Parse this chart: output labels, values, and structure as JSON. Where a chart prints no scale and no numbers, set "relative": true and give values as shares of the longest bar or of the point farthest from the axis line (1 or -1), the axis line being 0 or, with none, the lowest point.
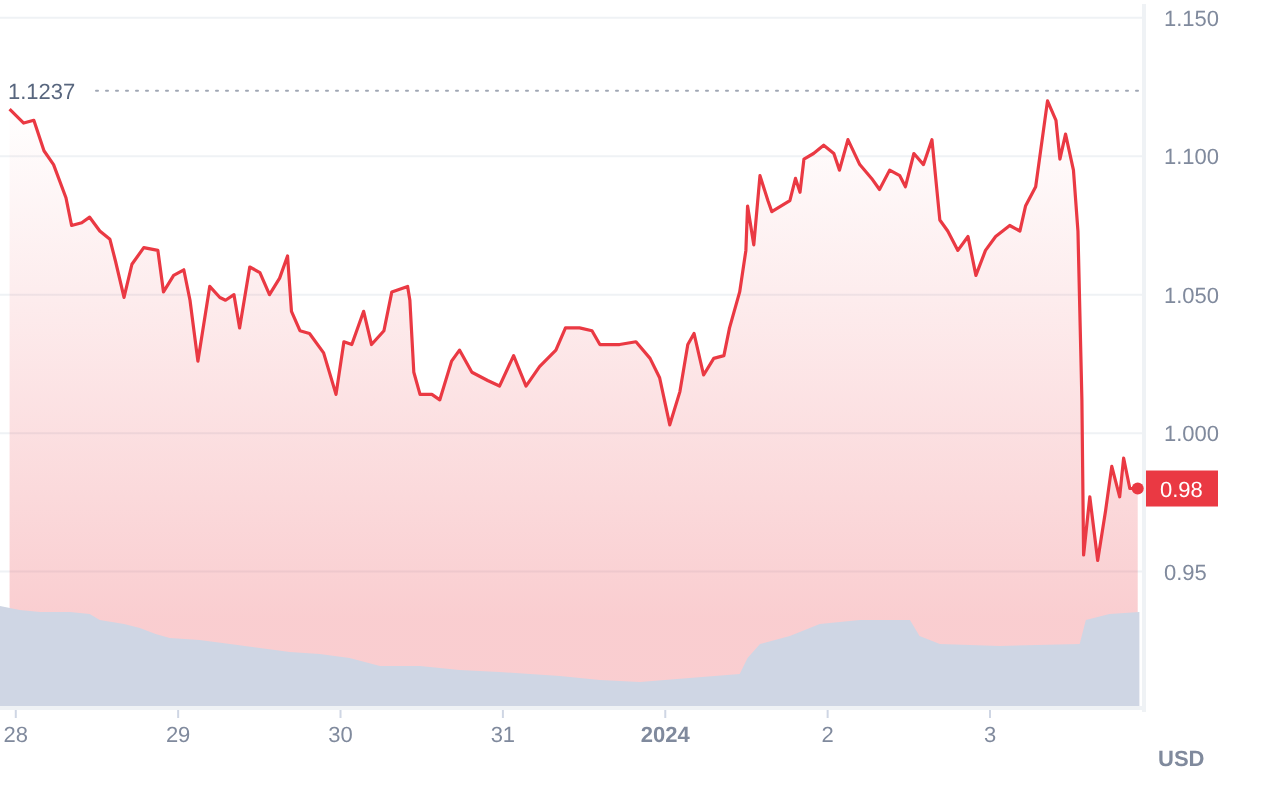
{
  "chart_data": [
    {
      "type": "area",
      "ylabel": "USD",
      "xlim": [
        "2023-12-27T21:40",
        "2024-01-03T22:28"
      ],
      "ylim": [
        0.9,
        1.155
      ],
      "yticks": [
        0.95,
        {
          "value": 1.0,
          "label": "1.000"
        },
        {
          "value": 1.05,
          "label": "1.050"
        },
        {
          "value": 1.1,
          "label": "1.100"
        },
        {
          "value": 1.15,
          "label": "1.150"
        }
      ],
      "tick_labels": "y",
      "grid": "y",
      "ref_lines": [
        {
          "axis": "y",
          "value": 1.1237,
          "label": "1.1237",
          "color": "#a0a7b4",
          "line_style": "dotted"
        }
      ],
      "annotations": [
        {
          "text": "0.98",
          "x": "2024-01-03T21:50",
          "y": 0.98
        }
      ],
      "series": [
        {
          "color": "#ea3943",
          "x": [
            "2023-12-27T23:05",
            "2023-12-28T01:10",
            "2023-12-28T02:40",
            "2023-12-28T04:10",
            "2023-12-28T05:35",
            "2023-12-28T07:25",
            "2023-12-28T08:15",
            "2023-12-28T09:45",
            "2023-12-28T10:55",
            "2023-12-28T12:25",
            "2023-12-28T13:55",
            "2023-12-28T14:45",
            "2023-12-28T16:00",
            "2023-12-28T17:10",
            "2023-12-28T18:55",
            "2023-12-28T21:00",
            "2023-12-28T21:50",
            "2023-12-28T23:20",
            "2023-12-29T00:50",
            "2023-12-29T01:45",
            "2023-12-29T02:55",
            "2023-12-29T04:40",
            "2023-12-29T06:10",
            "2023-12-29T07:00",
            "2023-12-29T08:15",
            "2023-12-29T09:05",
            "2023-12-29T10:35",
            "2023-12-29T12:05",
            "2023-12-29T13:30",
            "2023-12-29T15:00",
            "2023-12-29T16:10",
            "2023-12-29T16:45",
            "2023-12-29T18:00",
            "2023-12-29T19:25",
            "2023-12-29T21:30",
            "2023-12-29T23:20",
            "2023-12-30T00:30",
            "2023-12-30T01:40",
            "2023-12-30T03:25",
            "2023-12-30T04:35",
            "2023-12-30T06:25",
            "2023-12-30T07:35",
            "2023-12-30T09:55",
            "2023-12-30T10:15",
            "2023-12-30T10:50",
            "2023-12-30T11:45",
            "2023-12-30T13:30",
            "2023-12-30T14:40",
            "2023-12-30T16:25",
            "2023-12-30T17:35",
            "2023-12-30T19:25",
            "2023-12-30T21:45",
            "2023-12-30T23:30",
            "2023-12-31T01:35",
            "2023-12-31T03:25",
            "2023-12-31T05:25",
            "2023-12-31T07:50",
            "2023-12-31T09:15",
            "2023-12-31T11:20",
            "2023-12-31T13:10",
            "2023-12-31T14:20",
            "2023-12-31T17:15",
            "2023-12-31T19:40",
            "2023-12-31T21:45",
            "2023-12-31T23:10",
            "2024-01-01T00:40",
            "2024-01-01T02:10",
            "2024-01-01T03:20",
            "2024-01-01T04:15",
            "2024-01-01T05:40",
            "2024-01-01T07:10",
            "2024-01-01T08:40",
            "2024-01-01T09:30",
            "2024-01-01T11:00",
            "2024-01-01T11:55",
            "2024-01-01T12:10",
            "2024-01-01T13:05",
            "2024-01-01T14:00",
            "2024-01-01T15:10",
            "2024-01-01T15:45",
            "2024-01-01T18:25",
            "2024-01-01T19:15",
            "2024-01-01T19:55",
            "2024-01-01T20:30",
            "2024-01-01T21:55",
            "2024-01-01T23:25",
            "2024-01-02T00:55",
            "2024-01-02T01:45",
            "2024-01-02T03:00",
            "2024-01-02T04:45",
            "2024-01-02T06:30",
            "2024-01-02T07:40",
            "2024-01-02T09:10",
            "2024-01-02T10:40",
            "2024-01-02T11:30",
            "2024-01-02T12:45",
            "2024-01-02T14:10",
            "2024-01-02T15:25",
            "2024-01-02T16:35",
            "2024-01-02T17:45",
            "2024-01-02T19:15",
            "2024-01-02T20:45",
            "2024-01-02T21:55",
            "2024-01-02T23:20",
            "2024-01-03T00:50",
            "2024-01-03T02:55",
            "2024-01-03T04:25",
            "2024-01-03T05:15",
            "2024-01-03T06:45",
            "2024-01-03T08:30",
            "2024-01-03T09:45",
            "2024-01-03T10:20",
            "2024-01-03T11:10",
            "2024-01-03T12:20",
            "2024-01-03T13:00",
            "2024-01-03T13:35",
            "2024-01-03T13:50",
            "2024-01-03T14:45",
            "2024-01-03T15:55",
            "2024-01-03T17:05",
            "2024-01-03T18:00",
            "2024-01-03T19:10",
            "2024-01-03T19:45",
            "2024-01-03T20:40",
            "2024-01-03T21:50"
          ],
          "values": [
            1.117,
            1.112,
            1.113,
            1.102,
            1.097,
            1.085,
            1.075,
            1.076,
            1.078,
            1.073,
            1.07,
            1.062,
            1.049,
            1.061,
            1.067,
            1.066,
            1.051,
            1.057,
            1.059,
            1.048,
            1.026,
            1.053,
            1.049,
            1.048,
            1.05,
            1.038,
            1.06,
            1.058,
            1.05,
            1.056,
            1.064,
            1.044,
            1.037,
            1.036,
            1.029,
            1.014,
            1.033,
            1.032,
            1.044,
            1.032,
            1.037,
            1.051,
            1.053,
            1.048,
            1.022,
            1.014,
            1.014,
            1.012,
            1.026,
            1.03,
            1.022,
            1.019,
            1.017,
            1.028,
            1.017,
            1.024,
            1.03,
            1.038,
            1.038,
            1.037,
            1.032,
            1.032,
            1.033,
            1.027,
            1.02,
            1.003,
            1.015,
            1.032,
            1.036,
            1.021,
            1.027,
            1.028,
            1.038,
            1.051,
            1.066,
            1.082,
            1.068,
            1.093,
            1.084,
            1.08,
            1.084,
            1.092,
            1.087,
            1.099,
            1.101,
            1.104,
            1.101,
            1.095,
            1.106,
            1.097,
            1.092,
            1.088,
            1.095,
            1.093,
            1.089,
            1.101,
            1.097,
            1.106,
            1.077,
            1.073,
            1.066,
            1.071,
            1.057,
            1.066,
            1.071,
            1.075,
            1.073,
            1.082,
            1.089,
            1.12,
            1.113,
            1.099,
            1.108,
            1.095,
            1.073,
            1.012,
            0.956,
            0.977,
            0.954,
            0.972,
            0.988,
            0.977,
            0.991,
            0.98,
            0.98
          ]
        }
      ]
    },
    {
      "type": "area",
      "relative": true,
      "xlim": [
        "2023-12-27T21:40",
        "2024-01-03T22:28"
      ],
      "tick_labels": "x",
      "xticks": [
        {
          "value": "2023-12-28",
          "label": "28"
        },
        {
          "value": "2023-12-29",
          "label": "29"
        },
        {
          "value": "2023-12-30",
          "label": "30"
        },
        {
          "value": "2023-12-31",
          "label": "31"
        },
        {
          "value": "2024-01-01",
          "label": "2024"
        },
        {
          "value": "2024-01-02",
          "label": "2"
        },
        {
          "value": "2024-01-03",
          "label": "3"
        }
      ],
      "series": [
        {
          "color": "#cfd6e4",
          "x": [
            "2023-12-27T21:40",
            "2023-12-28T00:35",
            "2023-12-28T03:35",
            "2023-12-28T08:00",
            "2023-12-28T10:55",
            "2023-12-28T12:25",
            "2023-12-28T16:00",
            "2023-12-28T18:20",
            "2023-12-28T20:40",
            "2023-12-28T22:45",
            "2023-12-29T03:10",
            "2023-12-29T07:40",
            "2023-12-29T12:05",
            "2023-12-29T16:30",
            "2023-12-29T20:55",
            "2023-12-30T01:20",
            "2023-12-30T05:50",
            "2023-12-30T11:45",
            "2023-12-30T17:35",
            "2023-12-30T23:30",
            "2023-12-31T08:25",
            "2023-12-31T14:20",
            "2023-12-31T20:15",
            "2024-01-01T03:35",
            "2024-01-01T11:00",
            "2024-01-01T12:10",
            "2024-01-01T14:00",
            "2024-01-01T18:25",
            "2024-01-01T22:50",
            "2024-01-02T04:45",
            "2024-01-02T12:10",
            "2024-01-02T13:35",
            "2024-01-02T16:35",
            "2024-01-03T01:25",
            "2024-01-03T13:15",
            "2024-01-03T14:10",
            "2024-01-03T17:40",
            "2024-01-03T22:05"
          ],
          "values": [
            1.0,
            0.96,
            0.94,
            0.94,
            0.92,
            0.86,
            0.82,
            0.78,
            0.72,
            0.68,
            0.66,
            0.62,
            0.58,
            0.54,
            0.52,
            0.48,
            0.4,
            0.4,
            0.36,
            0.34,
            0.3,
            0.26,
            0.24,
            0.28,
            0.32,
            0.48,
            0.62,
            0.7,
            0.82,
            0.86,
            0.86,
            0.7,
            0.62,
            0.6,
            0.62,
            0.86,
            0.92,
            0.94
          ]
        }
      ]
    }
  ]
}
